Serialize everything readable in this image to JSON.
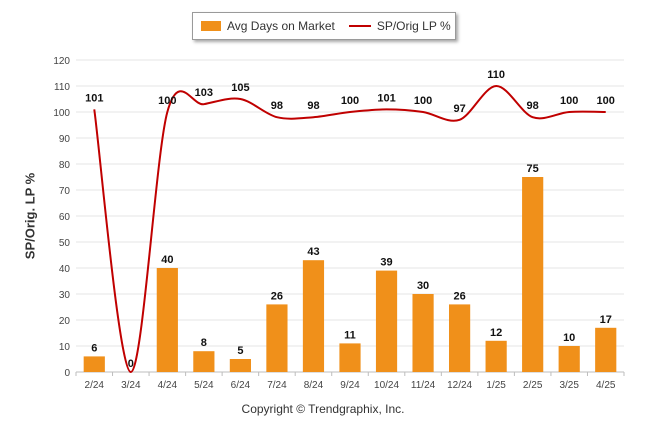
{
  "chart_data": {
    "type": "bar",
    "categories": [
      "2/24",
      "3/24",
      "4/24",
      "5/24",
      "6/24",
      "7/24",
      "8/24",
      "9/24",
      "10/24",
      "11/24",
      "12/24",
      "1/25",
      "2/25",
      "3/25",
      "4/25"
    ],
    "series": [
      {
        "name": "Avg Days on Market",
        "type": "bar",
        "values": [
          6,
          0,
          40,
          8,
          5,
          26,
          43,
          11,
          39,
          30,
          26,
          12,
          75,
          10,
          17
        ],
        "color": "#f0901a"
      },
      {
        "name": "SP/Orig LP %",
        "type": "line",
        "values": [
          101,
          0,
          100,
          103,
          105,
          98,
          98,
          100,
          101,
          100,
          97,
          110,
          98,
          100,
          100
        ],
        "color": "#c00000"
      }
    ],
    "ylabel": "SP/Orig. LP %",
    "xlabel": "",
    "ylim": [
      0,
      120
    ],
    "yticks": [
      0,
      10,
      20,
      30,
      40,
      50,
      60,
      70,
      80,
      90,
      100,
      110,
      120
    ],
    "grid": true,
    "legend": "top-center"
  },
  "copyright": "Copyright © Trendgraphix, Inc."
}
